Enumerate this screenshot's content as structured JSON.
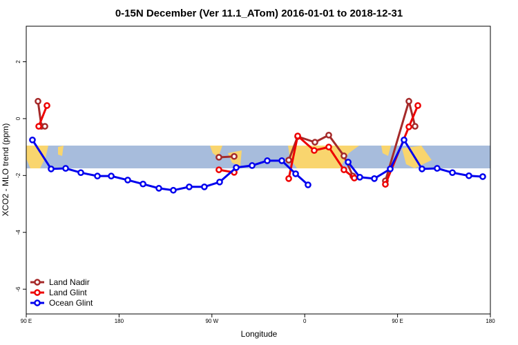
{
  "chart_data": {
    "type": "line",
    "title": "0-15N December (Ver 11.1_ATom)   2016-01-01 to 2018-12-31",
    "x_label": "Longitude",
    "y_label": "XCO2 - MLO trend (ppm)",
    "xlim": [
      90,
      540
    ],
    "ylim": [
      -6.87,
      3.25
    ],
    "xticks": [
      {
        "value": 90,
        "label": "90 E"
      },
      180,
      {
        "value": 270,
        "label": "90 W"
      },
      {
        "value": 360,
        "label": "0"
      },
      {
        "value": 450,
        "label": "90 E"
      },
      {
        "value": 540,
        "label": "180"
      }
    ],
    "yticks": [
      -6,
      -4,
      -2,
      0,
      2
    ],
    "legend": "bottomleft",
    "series": [
      {
        "name": "Land Nadir",
        "color": "#a52a2a",
        "x": [
          101.4,
          104.7,
          108.1,
          null,
          276.8,
          291.6,
          null,
          344.5,
          353.2,
          369.9,
          383.3,
          398.0,
          406.7,
          null,
          438.2,
          461.0,
          467.0
        ],
        "values": [
          0.61,
          -0.27,
          -0.27,
          null,
          -1.36,
          -1.33,
          null,
          -1.46,
          -0.63,
          -0.83,
          -0.58,
          -1.31,
          -2.02,
          null,
          -2.19,
          0.61,
          -0.27
        ]
      },
      {
        "name": "Land Glint",
        "color": "#ee0000",
        "x": [
          102.1,
          110.1,
          null,
          276.8,
          291.6,
          null,
          344.5,
          353.2,
          369.2,
          383.3,
          398.0,
          408.1,
          null,
          438.2,
          461.0,
          469.7
        ],
        "values": [
          -0.27,
          0.46,
          null,
          -1.8,
          -1.89,
          null,
          -2.11,
          -0.61,
          -1.12,
          -1.0,
          -1.8,
          -2.09,
          null,
          -2.31,
          -0.29,
          0.46
        ]
      },
      {
        "name": "Ocean Glint",
        "color": "#0000ee",
        "x": [
          96.0,
          114.1,
          128.2,
          142.9,
          159.0,
          172.4,
          188.4,
          203.2,
          218.6,
          232.6,
          248.0,
          262.7,
          277.5,
          293.6,
          309.0,
          323.7,
          337.8,
          351.2,
          363.2,
          null,
          402.1,
          413.4,
          427.5,
          442.9,
          456.3,
          473.7,
          488.4,
          503.2,
          519.2,
          532.6
        ],
        "values": [
          -0.75,
          -1.77,
          -1.75,
          -1.9,
          -2.02,
          -2.02,
          -2.16,
          -2.3,
          -2.45,
          -2.52,
          -2.4,
          -2.4,
          -2.23,
          -1.72,
          -1.65,
          -1.48,
          -1.48,
          -1.94,
          -2.33,
          null,
          -1.53,
          -2.06,
          -2.11,
          -1.77,
          -0.75,
          -1.77,
          -1.75,
          -1.9,
          -2.01,
          -2.04
        ]
      }
    ]
  }
}
